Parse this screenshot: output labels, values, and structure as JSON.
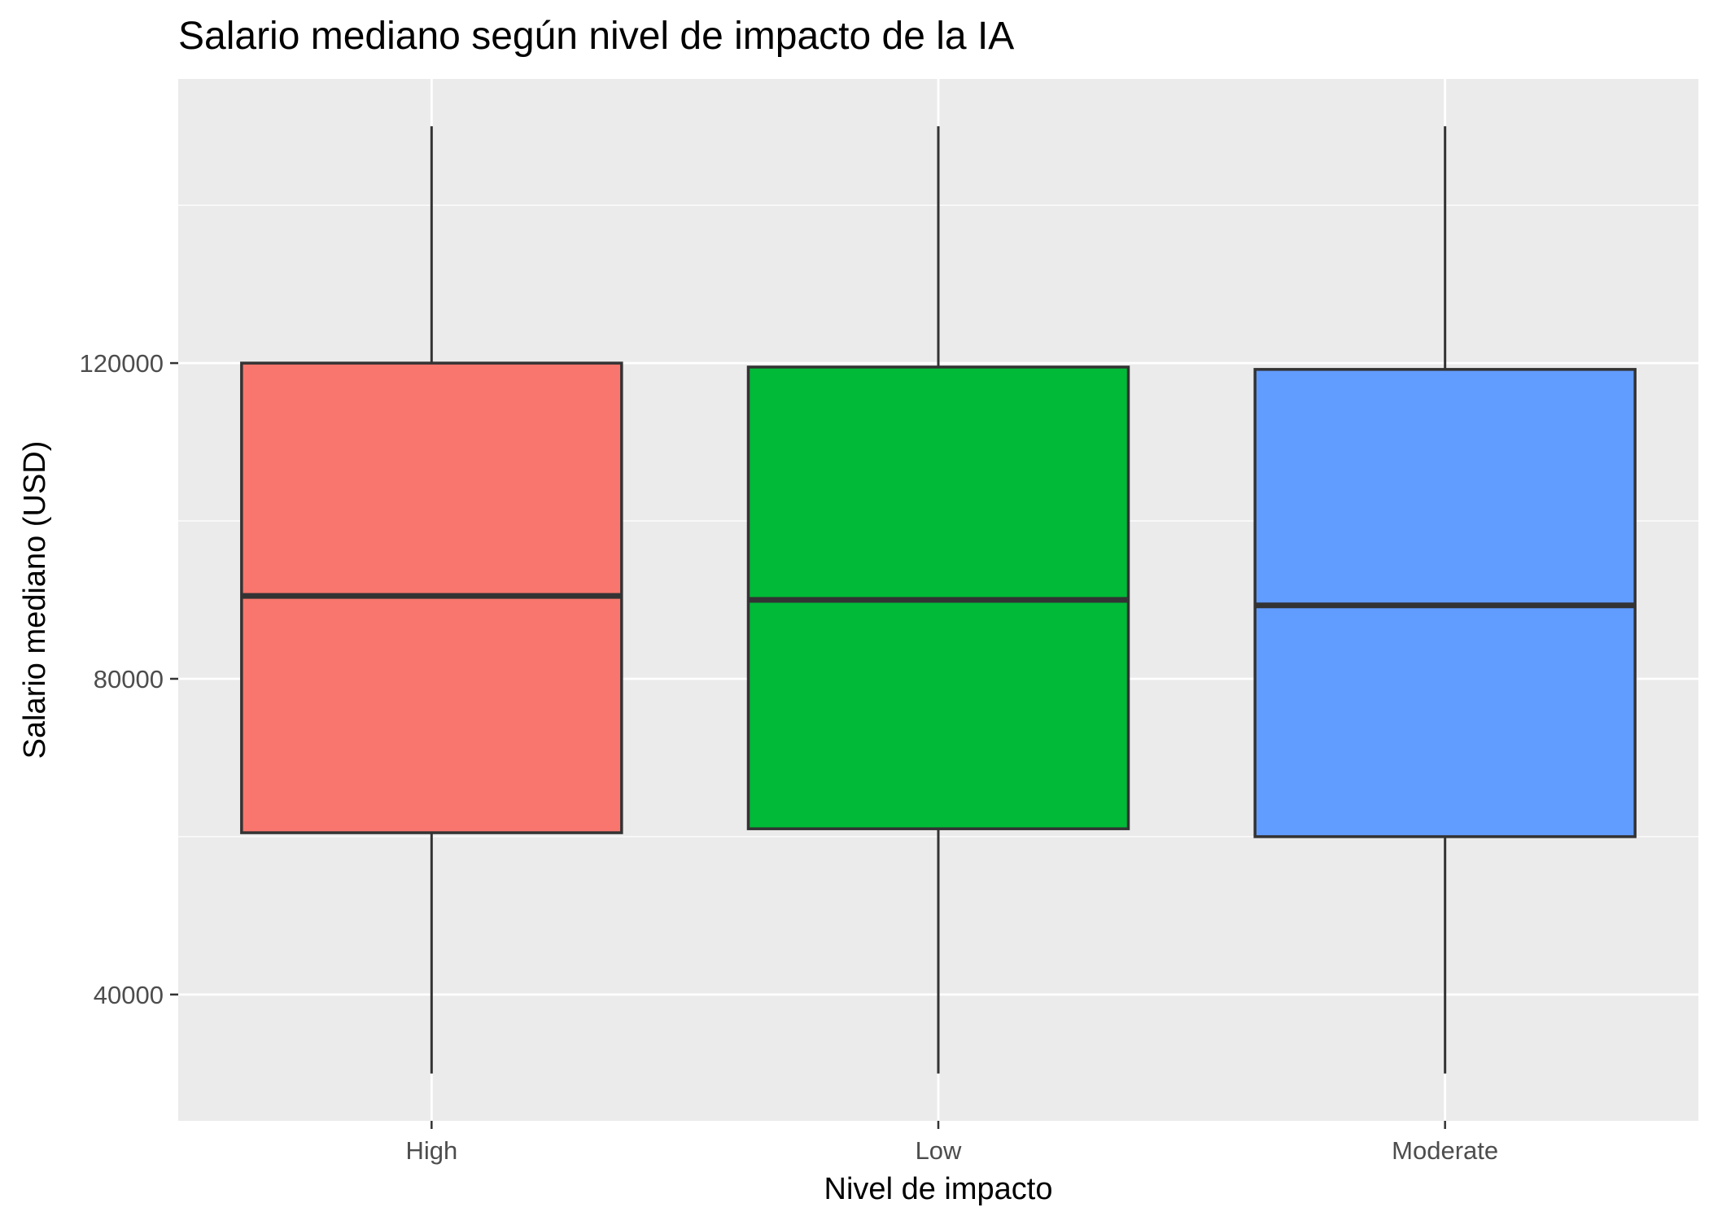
{
  "chart_data": {
    "type": "boxplot",
    "title": "Salario mediano según nivel de impacto de la IA",
    "xlabel": "Nivel de impacto",
    "ylabel": "Salario mediano (USD)",
    "categories": [
      "High",
      "Low",
      "Moderate"
    ],
    "boxes": [
      {
        "category": "High",
        "min": 30000,
        "q1": 60500,
        "median": 90500,
        "q3": 120000,
        "max": 150000,
        "fill": "#F8766D"
      },
      {
        "category": "Low",
        "min": 30000,
        "q1": 61000,
        "median": 90000,
        "q3": 119500,
        "max": 150000,
        "fill": "#00BA38"
      },
      {
        "category": "Moderate",
        "min": 30000,
        "q1": 60000,
        "median": 89300,
        "q3": 119200,
        "max": 150000,
        "fill": "#619CFF"
      }
    ],
    "yticks": [
      40000,
      80000,
      120000
    ],
    "yticklabels": [
      "40000",
      "80000",
      "120000"
    ],
    "ylim": [
      24000,
      156000
    ],
    "grid": true,
    "legend": "none",
    "colors": {
      "panel_background": "#EBEBEB",
      "grid": "#FFFFFF",
      "box_outline": "#333333",
      "tick": "#333333"
    }
  }
}
